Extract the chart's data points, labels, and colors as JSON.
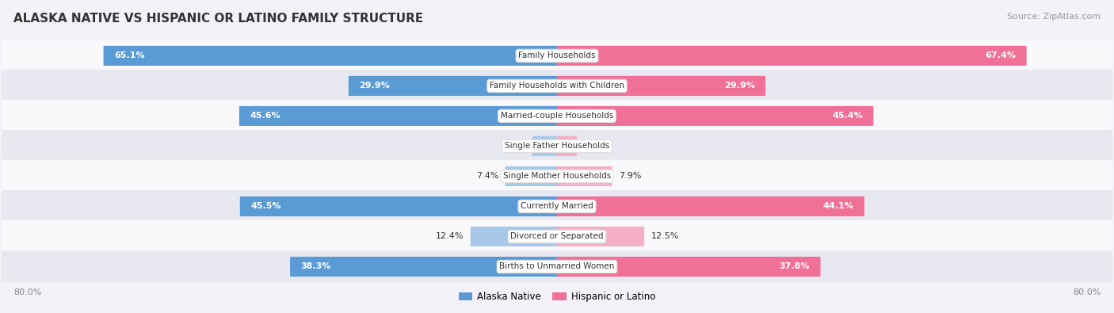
{
  "title": "ALASKA NATIVE VS HISPANIC OR LATINO FAMILY STRUCTURE",
  "source": "Source: ZipAtlas.com",
  "categories": [
    "Family Households",
    "Family Households with Children",
    "Married-couple Households",
    "Single Father Households",
    "Single Mother Households",
    "Currently Married",
    "Divorced or Separated",
    "Births to Unmarried Women"
  ],
  "alaska_values": [
    65.1,
    29.9,
    45.6,
    3.5,
    7.4,
    45.5,
    12.4,
    38.3
  ],
  "hispanic_values": [
    67.4,
    29.9,
    45.4,
    2.8,
    7.9,
    44.1,
    12.5,
    37.8
  ],
  "alaska_color_dark": "#5b9bd5",
  "alaska_color_light": "#a8c8e8",
  "hispanic_color_dark": "#f07098",
  "hispanic_color_light": "#f5b0c5",
  "axis_max": 80,
  "bg_color": "#f2f2f8",
  "row_bg_light": "#f9f9fc",
  "row_bg_dark": "#e8e8f0",
  "title_color": "#333333",
  "source_color": "#999999",
  "value_color_dark": "#333333",
  "value_color_white": "#ffffff",
  "cat_label_color": "#333333",
  "bottom_label_color": "#888888",
  "threshold": 20
}
